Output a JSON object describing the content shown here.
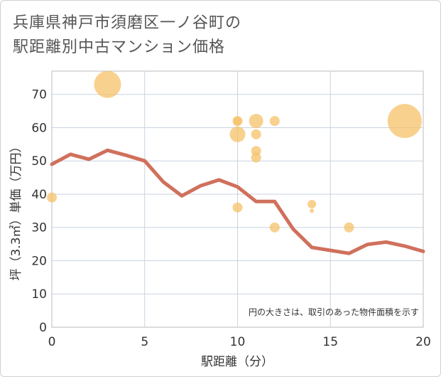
{
  "title_line1": "兵庫県神戸市須磨区一ノ谷町の",
  "title_line2": "駅距離別中古マンション価格",
  "chart_data": {
    "type": "scatter",
    "title": "兵庫県神戸市須磨区一ノ谷町の駅距離別中古マンション価格",
    "xlabel": "駅距離（分）",
    "ylabel": "坪（3.3㎡）単価（万円）",
    "xlim": [
      0,
      20
    ],
    "ylim": [
      0,
      77
    ],
    "x_ticks": [
      0,
      5,
      10,
      15,
      20
    ],
    "y_ticks": [
      0,
      10,
      20,
      30,
      40,
      50,
      60,
      70
    ],
    "grid": true,
    "annotation": "円の大きさは、取引のあった物件面積を示す",
    "bubble_color": "#f5c16a",
    "line_color": "#d0705c",
    "bubbles": [
      {
        "x": 0,
        "y": 39,
        "size": 7
      },
      {
        "x": 3,
        "y": 73,
        "size": 19
      },
      {
        "x": 10,
        "y": 62,
        "size": 7
      },
      {
        "x": 10,
        "y": 62,
        "size": 6
      },
      {
        "x": 10,
        "y": 58,
        "size": 11
      },
      {
        "x": 10,
        "y": 36,
        "size": 7
      },
      {
        "x": 11,
        "y": 62,
        "size": 10
      },
      {
        "x": 11,
        "y": 58,
        "size": 7
      },
      {
        "x": 11,
        "y": 53,
        "size": 7
      },
      {
        "x": 11,
        "y": 51,
        "size": 7
      },
      {
        "x": 12,
        "y": 62,
        "size": 7
      },
      {
        "x": 12,
        "y": 30,
        "size": 7
      },
      {
        "x": 14,
        "y": 37,
        "size": 6
      },
      {
        "x": 14,
        "y": 35,
        "size": 3
      },
      {
        "x": 16,
        "y": 30,
        "size": 7
      },
      {
        "x": 19,
        "y": 62,
        "size": 24
      }
    ],
    "trend_line": {
      "x": [
        0,
        1,
        2,
        3,
        4,
        5,
        6,
        7,
        8,
        9,
        10,
        11,
        12,
        13,
        14,
        15,
        16,
        17,
        18,
        19,
        20
      ],
      "y": [
        49,
        52,
        50.5,
        53.2,
        51.7,
        50,
        43.7,
        39.5,
        42.5,
        44.3,
        42.2,
        37.8,
        37.8,
        29.5,
        24,
        23.1,
        22.2,
        24.9,
        25.6,
        24.4,
        22.8
      ]
    }
  }
}
